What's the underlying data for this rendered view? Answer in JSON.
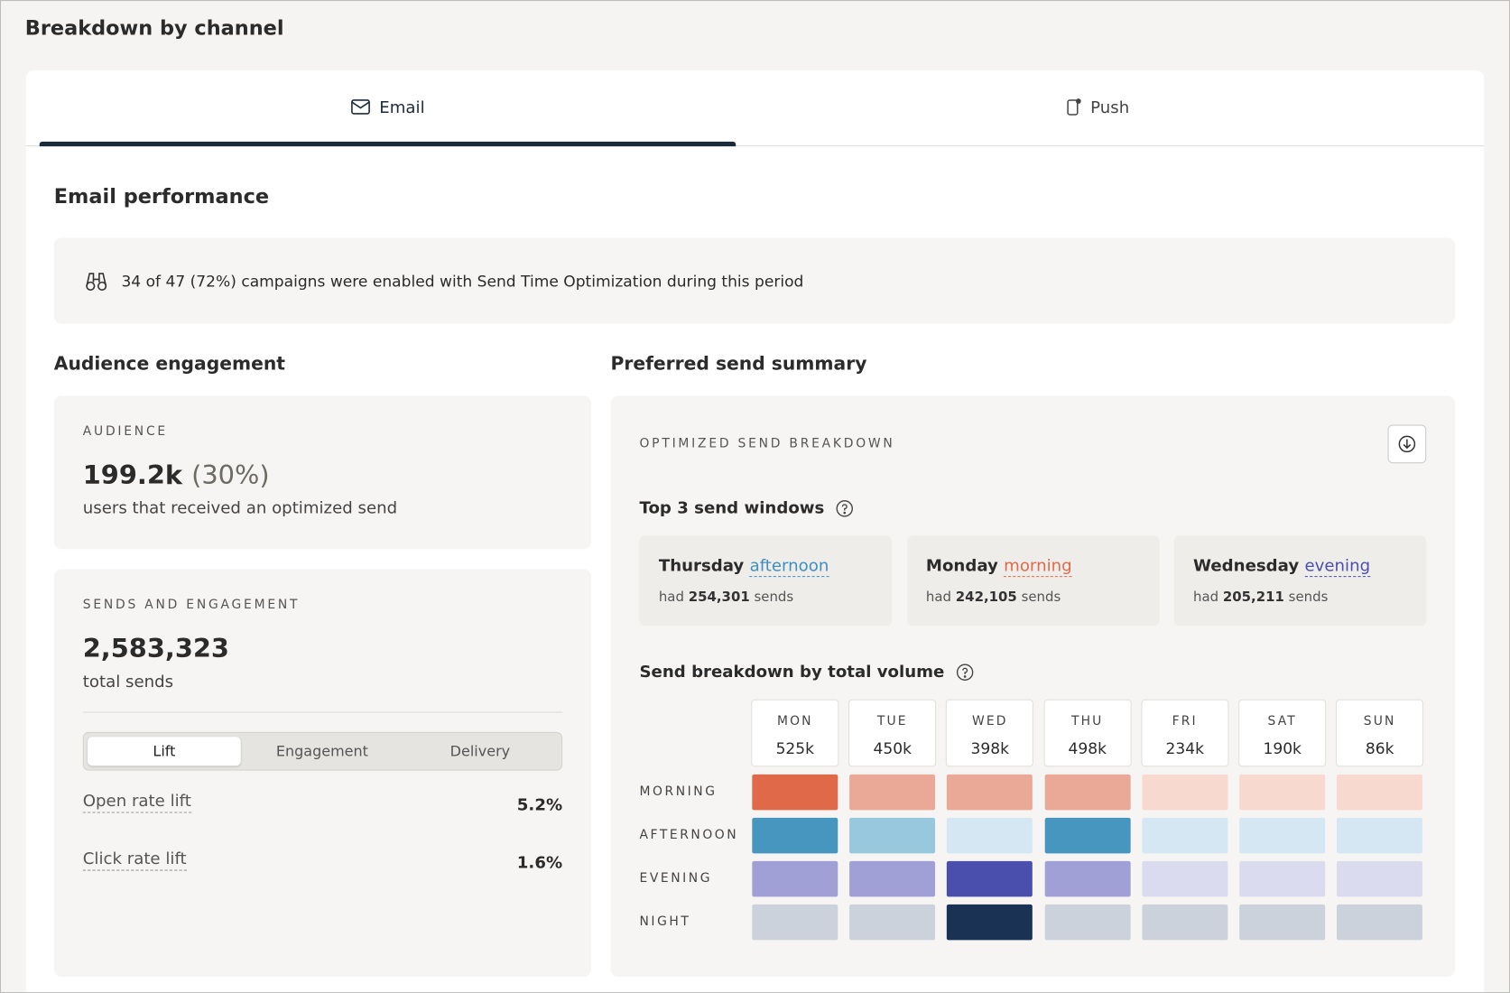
{
  "header": {
    "title": "Breakdown by channel"
  },
  "tabs": [
    {
      "label": "Email",
      "selected": true
    },
    {
      "label": "Push",
      "selected": false
    }
  ],
  "section_title": "Email performance",
  "banner": "34 of 47 (72%) campaigns were enabled with Send Time Optimization during this period",
  "audience_engagement": {
    "title": "Audience engagement",
    "audience": {
      "label": "AUDIENCE",
      "value": "199.2k",
      "percent": "(30%)",
      "caption": "users that received an optimized send"
    },
    "sends": {
      "label": "SENDS AND ENGAGEMENT",
      "value": "2,583,323",
      "caption": "total sends",
      "segments": [
        {
          "label": "Lift",
          "selected": true
        },
        {
          "label": "Engagement",
          "selected": false
        },
        {
          "label": "Delivery",
          "selected": false
        }
      ],
      "metrics": [
        {
          "label": "Open rate lift",
          "value": "5.2%"
        },
        {
          "label": "Click rate lift",
          "value": "1.6%"
        }
      ]
    }
  },
  "preferred_send": {
    "title": "Preferred send summary",
    "label": "OPTIMIZED SEND BREAKDOWN",
    "top_title": "Top 3 send windows",
    "windows": [
      {
        "day": "Thursday",
        "period": "afternoon",
        "color": "#3d8fbf",
        "prefix": "had",
        "count": "254,301",
        "suffix": "sends"
      },
      {
        "day": "Monday",
        "period": "morning",
        "color": "#e0694a",
        "prefix": "had",
        "count": "242,105",
        "suffix": "sends"
      },
      {
        "day": "Wednesday",
        "period": "evening",
        "color": "#4a4fae",
        "prefix": "had",
        "count": "205,211",
        "suffix": "sends"
      }
    ],
    "heatmap": {
      "title": "Send breakdown by total volume",
      "days": [
        {
          "name": "MON",
          "total": "525k"
        },
        {
          "name": "TUE",
          "total": "450k"
        },
        {
          "name": "WED",
          "total": "398k"
        },
        {
          "name": "THU",
          "total": "498k"
        },
        {
          "name": "FRI",
          "total": "234k"
        },
        {
          "name": "SAT",
          "total": "190k"
        },
        {
          "name": "SUN",
          "total": "86k"
        }
      ],
      "rows": [
        {
          "name": "MORNING",
          "colors": [
            "#e0694a",
            "#eaa996",
            "#eaa996",
            "#eaa996",
            "#f7d9d0",
            "#f7d9d0",
            "#f7d9d0"
          ]
        },
        {
          "name": "AFTERNOON",
          "colors": [
            "#4696bf",
            "#97c8dd",
            "#d4e7f2",
            "#4696bf",
            "#d4e7f2",
            "#d4e7f2",
            "#d4e7f2"
          ]
        },
        {
          "name": "EVENING",
          "colors": [
            "#a0a0d6",
            "#a0a0d6",
            "#4a4fae",
            "#a0a0d6",
            "#dadbef",
            "#dadbef",
            "#dadbef"
          ]
        },
        {
          "name": "NIGHT",
          "colors": [
            "#cbd2dc",
            "#cbd2dc",
            "#1a3354",
            "#cbd2dc",
            "#cbd2dc",
            "#cbd2dc",
            "#cbd2dc"
          ]
        }
      ]
    }
  }
}
